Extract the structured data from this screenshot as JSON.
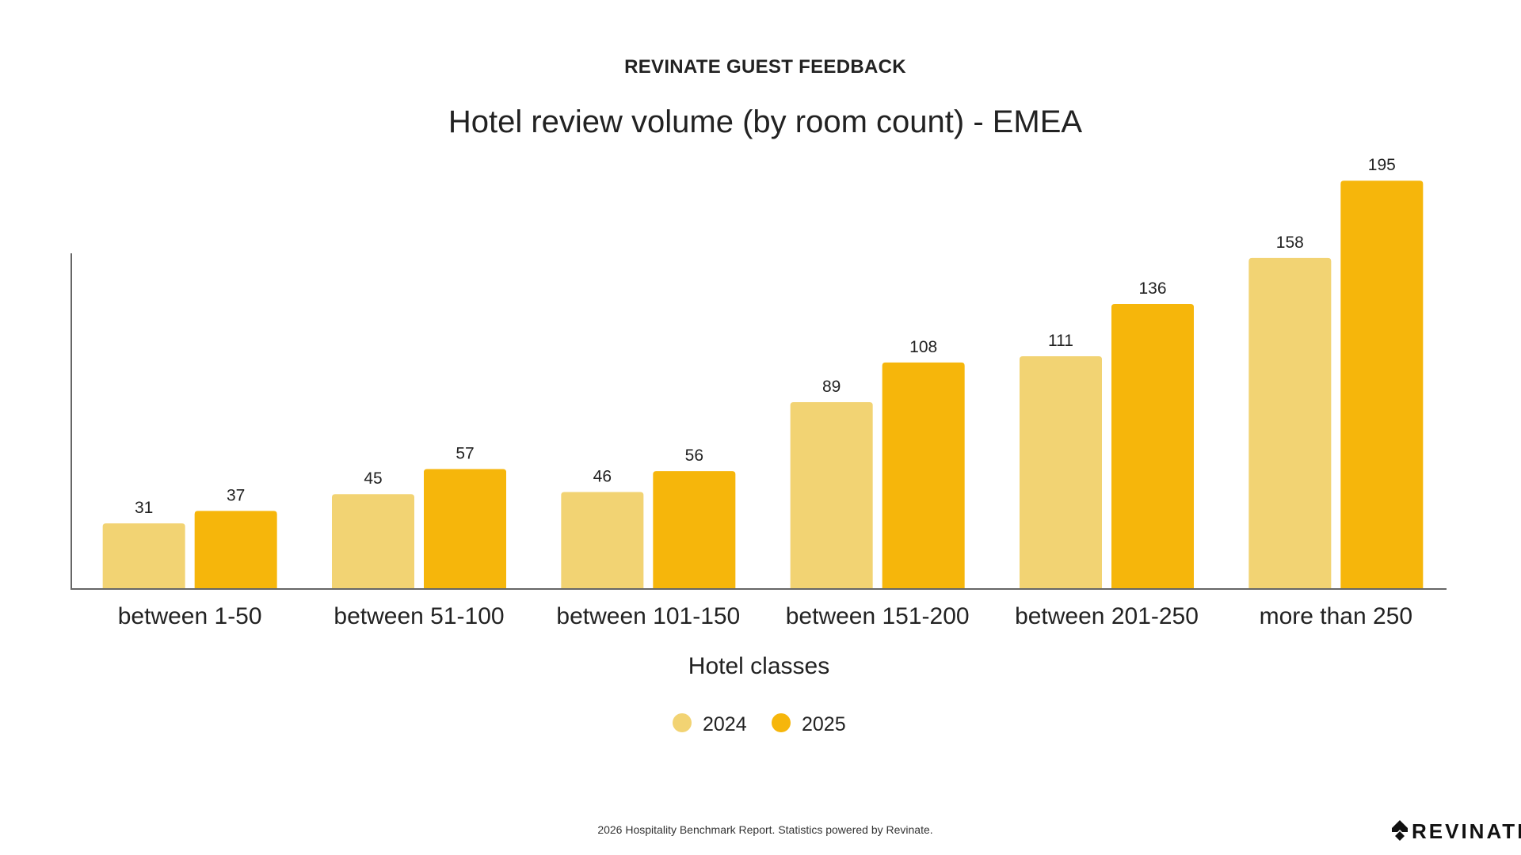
{
  "header": {
    "label": "REVINATE GUEST FEEDBACK"
  },
  "footer": {
    "note": "2026 Hospitality Benchmark Report. Statistics powered by Revinate.",
    "brand": "REVINATE"
  },
  "chart_data": {
    "type": "bar",
    "title": "Hotel review volume (by room count) - EMEA",
    "xlabel": "Hotel classes",
    "ylabel": "",
    "categories": [
      "between 1-50",
      "between 51-100",
      "between 101-150",
      "between 151-200",
      "between 201-250",
      "more than 250"
    ],
    "series": [
      {
        "name": "2024",
        "values": [
          31,
          45,
          46,
          89,
          111,
          158
        ],
        "color": "#F2D373"
      },
      {
        "name": "2025",
        "values": [
          37,
          57,
          56,
          108,
          136,
          195
        ],
        "color": "#F6B60B"
      }
    ],
    "ylim": [
      0,
      250
    ],
    "grid": false,
    "legend": "bottom-center",
    "data_labels": true
  }
}
